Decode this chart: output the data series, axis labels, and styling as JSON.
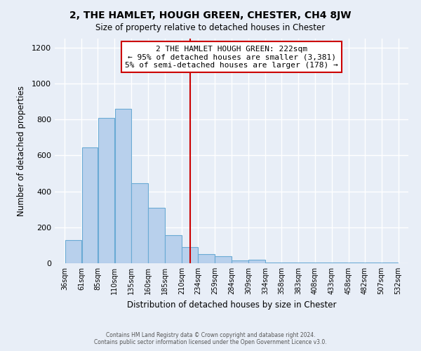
{
  "title": "2, THE HAMLET, HOUGH GREEN, CHESTER, CH4 8JW",
  "subtitle": "Size of property relative to detached houses in Chester",
  "xlabel": "Distribution of detached houses by size in Chester",
  "ylabel": "Number of detached properties",
  "bar_values": [
    130,
    645,
    810,
    860,
    445,
    310,
    155,
    90,
    50,
    40,
    15,
    20,
    5,
    5,
    5,
    5,
    5,
    5,
    5,
    3
  ],
  "bin_labels": [
    "36sqm",
    "61sqm",
    "85sqm",
    "110sqm",
    "135sqm",
    "160sqm",
    "185sqm",
    "210sqm",
    "234sqm",
    "259sqm",
    "284sqm",
    "309sqm",
    "334sqm",
    "358sqm",
    "383sqm",
    "408sqm",
    "433sqm",
    "458sqm",
    "482sqm",
    "507sqm",
    "532sqm"
  ],
  "bar_color": "#b8d0ec",
  "bar_edge_color": "#6aaad4",
  "vline_x": 222,
  "vline_color": "#cc0000",
  "ylim": [
    0,
    1250
  ],
  "yticks": [
    0,
    200,
    400,
    600,
    800,
    1000,
    1200
  ],
  "annotation_title": "2 THE HAMLET HOUGH GREEN: 222sqm",
  "annotation_line1": "← 95% of detached houses are smaller (3,381)",
  "annotation_line2": "5% of semi-detached houses are larger (178) →",
  "annotation_box_color": "#ffffff",
  "annotation_box_edge": "#cc0000",
  "footer_line1": "Contains HM Land Registry data © Crown copyright and database right 2024.",
  "footer_line2": "Contains public sector information licensed under the Open Government Licence v3.0.",
  "background_color": "#e8eef7",
  "grid_color": "#ffffff",
  "figsize": [
    6.0,
    5.0
  ],
  "dpi": 100
}
